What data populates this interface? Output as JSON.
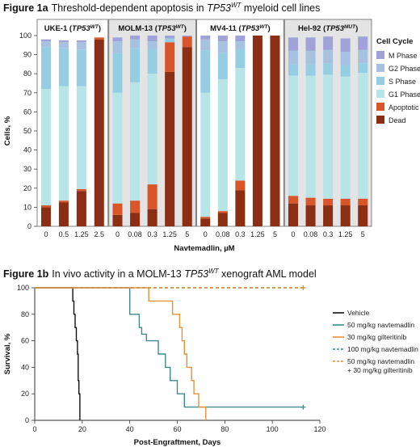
{
  "figure_1a": {
    "label": "Figure 1a",
    "title_pre": "Threshold-dependent apoptosis in",
    "title_gene": "TP53",
    "title_sup": "WT",
    "title_post": "myeloid cell lines"
  },
  "figure_1b": {
    "label": "Figure 1b",
    "title_pre": "In vivo activity in a MOLM-13",
    "title_gene": "TP53",
    "title_sup": "WT",
    "title_post": "xenograft AML model"
  },
  "chart_data": [
    {
      "type": "bar",
      "stacked": true,
      "xlabel": "Navtemadlin, µM",
      "ylabel": "Cells, %",
      "ylim": [
        0,
        100
      ],
      "yticks": [
        0,
        10,
        20,
        30,
        40,
        50,
        60,
        70,
        80,
        90,
        100
      ],
      "legend": {
        "title": "Cell Cycle",
        "position": "right"
      },
      "series_order": [
        "Dead",
        "Apoptotic",
        "G1 Phase",
        "S Phase",
        "G2 Phase",
        "M Phase"
      ],
      "legend_order": [
        "M Phase",
        "G2 Phase",
        "S Phase",
        "G1 Phase",
        "Apoptotic",
        "Dead"
      ],
      "colors": {
        "M Phase": "#9fa3d8",
        "G2 Phase": "#a7c2e0",
        "S Phase": "#97cde3",
        "G1 Phase": "#b7e4e6",
        "Apoptotic": "#d9552a",
        "Dead": "#8c2e14"
      },
      "panel_colors": [
        "#ffffff",
        "#e4e4e4",
        "#ffffff",
        "#e4e4e4"
      ],
      "panels": [
        {
          "cell_line": "UKE-1",
          "gene": "TP53",
          "status": "WT",
          "categories": [
            "0",
            "0.5",
            "1.25",
            "2.5"
          ],
          "series": [
            {
              "name": "Dead",
              "values": [
                10,
                12.5,
                18.5,
                98
              ]
            },
            {
              "name": "Apoptotic",
              "values": [
                1,
                1,
                1,
                1
              ]
            },
            {
              "name": "G1 Phase",
              "values": [
                61,
                60,
                54,
                0
              ]
            },
            {
              "name": "S Phase",
              "values": [
                22,
                20,
                19,
                0
              ]
            },
            {
              "name": "G2 Phase",
              "values": [
                3,
                3,
                4,
                0
              ]
            },
            {
              "name": "M Phase",
              "values": [
                1,
                1,
                1,
                0
              ]
            }
          ]
        },
        {
          "cell_line": "MOLM-13",
          "gene": "TP53",
          "status": "WT",
          "categories": [
            "0",
            "0.08",
            "0.3",
            "1.25",
            "5"
          ],
          "series": [
            {
              "name": "Dead",
              "values": [
                6,
                7,
                9,
                81,
                94
              ]
            },
            {
              "name": "Apoptotic",
              "values": [
                6,
                6.5,
                13,
                15.5,
                5.5
              ]
            },
            {
              "name": "G1 Phase",
              "values": [
                58,
                62,
                58,
                0,
                0
              ]
            },
            {
              "name": "S Phase",
              "values": [
                21,
                18,
                13,
                2,
                0
              ]
            },
            {
              "name": "G2 Phase",
              "values": [
                6,
                4.5,
                4,
                0,
                0
              ]
            },
            {
              "name": "M Phase",
              "values": [
                2,
                2,
                3,
                1.5,
                0.5
              ]
            }
          ]
        },
        {
          "cell_line": "MV4-11",
          "gene": "TP53",
          "status": "WT",
          "categories": [
            "0",
            "0.08",
            "0.3",
            "1.25",
            "5"
          ],
          "series": [
            {
              "name": "Dead",
              "values": [
                4,
                7,
                19,
                100,
                100
              ]
            },
            {
              "name": "Apoptotic",
              "values": [
                1,
                1,
                5,
                0,
                0
              ]
            },
            {
              "name": "G1 Phase",
              "values": [
                65,
                69,
                59,
                0,
                0
              ]
            },
            {
              "name": "S Phase",
              "values": [
                22,
                14,
                10,
                0,
                0
              ]
            },
            {
              "name": "G2 Phase",
              "values": [
                6,
                6,
                4,
                0,
                0
              ]
            },
            {
              "name": "M Phase",
              "values": [
                2,
                3,
                3,
                0,
                0
              ]
            }
          ]
        },
        {
          "cell_line": "Hel-92",
          "gene": "TP53",
          "status": "MUT",
          "categories": [
            "0",
            "0.08",
            "0.3",
            "1.25",
            "5"
          ],
          "series": [
            {
              "name": "Dead",
              "values": [
                12,
                11,
                11,
                11,
                11
              ]
            },
            {
              "name": "Apoptotic",
              "values": [
                4,
                4,
                3.5,
                3.5,
                3.5
              ]
            },
            {
              "name": "G1 Phase",
              "values": [
                63,
                64,
                65,
                64,
                66
              ]
            },
            {
              "name": "S Phase",
              "values": [
                6,
                6,
                6,
                6,
                5
              ]
            },
            {
              "name": "G2 Phase",
              "values": [
                7,
                7,
                7,
                7,
                7
              ]
            },
            {
              "name": "M Phase",
              "values": [
                7,
                7,
                7,
                7,
                7
              ]
            }
          ]
        }
      ]
    },
    {
      "type": "line",
      "step": true,
      "xlabel": "Post-Engraftment, Days",
      "ylabel": "Survival, %",
      "xlim": [
        0,
        120
      ],
      "ylim": [
        0,
        100
      ],
      "xticks": [
        0,
        20,
        40,
        60,
        80,
        100,
        120
      ],
      "yticks": [
        0,
        20,
        40,
        60,
        80,
        100
      ],
      "legend": {
        "position": "right"
      },
      "series": [
        {
          "name": "Vehicle",
          "color": "#111111",
          "dash": false,
          "points": [
            [
              0,
              100
            ],
            [
              16,
              100
            ],
            [
              16,
              90
            ],
            [
              16.5,
              90
            ],
            [
              16.5,
              80
            ],
            [
              17,
              80
            ],
            [
              17,
              70
            ],
            [
              17.5,
              70
            ],
            [
              17.5,
              60
            ],
            [
              18,
              60
            ],
            [
              18,
              50
            ],
            [
              18.3,
              50
            ],
            [
              18.3,
              30
            ],
            [
              18.6,
              30
            ],
            [
              18.6,
              20
            ],
            [
              19,
              20
            ],
            [
              19,
              0
            ]
          ]
        },
        {
          "name": "50 mg/kg navtemadlin",
          "color": "#3f8a8a",
          "dash": false,
          "points": [
            [
              0,
              100
            ],
            [
              40,
              100
            ],
            [
              40,
              80
            ],
            [
              44,
              80
            ],
            [
              44,
              70
            ],
            [
              45,
              70
            ],
            [
              45,
              65
            ],
            [
              47,
              65
            ],
            [
              47,
              60
            ],
            [
              52,
              60
            ],
            [
              52,
              50
            ],
            [
              55,
              50
            ],
            [
              55,
              40
            ],
            [
              57,
              40
            ],
            [
              57,
              30
            ],
            [
              60,
              30
            ],
            [
              60,
              20
            ],
            [
              63,
              20
            ],
            [
              63,
              10
            ],
            [
              113,
              10
            ]
          ],
          "end_marker": [
            113,
            10
          ]
        },
        {
          "name": "30 mg/kg gilteritinib",
          "color": "#e69136",
          "dash": false,
          "points": [
            [
              0,
              100
            ],
            [
              48,
              100
            ],
            [
              48,
              90
            ],
            [
              58,
              90
            ],
            [
              58,
              80
            ],
            [
              61,
              80
            ],
            [
              61,
              70
            ],
            [
              62,
              70
            ],
            [
              62,
              60
            ],
            [
              63,
              60
            ],
            [
              63,
              50
            ],
            [
              64,
              50
            ],
            [
              64,
              40
            ],
            [
              66,
              40
            ],
            [
              66,
              30
            ],
            [
              67,
              30
            ],
            [
              67,
              20
            ],
            [
              69,
              20
            ],
            [
              69,
              10
            ],
            [
              72,
              10
            ],
            [
              72,
              0
            ]
          ]
        },
        {
          "name": "100 mg/kg navtemadlin",
          "color": "#3f8a8a",
          "dash": true,
          "points": [
            [
              0,
              100
            ],
            [
              113,
              100
            ]
          ],
          "end_marker": [
            113,
            100
          ]
        },
        {
          "name": "50 mg/kg navtemadlin\n+ 30 mg/kg gilteritinib",
          "color": "#e69136",
          "dash": true,
          "points": [
            [
              0,
              100
            ],
            [
              113,
              100
            ]
          ],
          "end_marker": [
            113,
            100
          ]
        }
      ]
    }
  ]
}
